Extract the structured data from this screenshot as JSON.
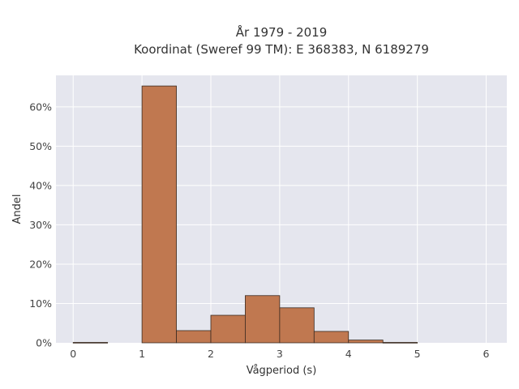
{
  "chart_data": {
    "type": "bar",
    "title_line1": "År 1979 - 2019",
    "title_line2": "Koordinat (Sweref 99 TM): E 368383, N 6189279",
    "xlabel": "Vågperiod (s)",
    "ylabel": "Andel",
    "xlim": [
      -0.25,
      6.3
    ],
    "ylim": [
      0,
      0.68
    ],
    "xticks": [
      0,
      1,
      2,
      3,
      4,
      5,
      6
    ],
    "xtick_labels": [
      "0",
      "1",
      "2",
      "3",
      "4",
      "5",
      "6"
    ],
    "yticks": [
      0,
      0.1,
      0.2,
      0.3,
      0.4,
      0.5,
      0.6
    ],
    "ytick_labels": [
      "0%",
      "10%",
      "20%",
      "30%",
      "40%",
      "50%",
      "60%"
    ],
    "bin_width": 0.5,
    "bins": [
      {
        "start": 0.0,
        "value": 0.001
      },
      {
        "start": 0.5,
        "value": 0.0
      },
      {
        "start": 1.0,
        "value": 0.653
      },
      {
        "start": 1.5,
        "value": 0.031
      },
      {
        "start": 2.0,
        "value": 0.07
      },
      {
        "start": 2.5,
        "value": 0.12
      },
      {
        "start": 3.0,
        "value": 0.089
      },
      {
        "start": 3.5,
        "value": 0.029
      },
      {
        "start": 4.0,
        "value": 0.007
      },
      {
        "start": 4.5,
        "value": 0.001
      },
      {
        "start": 5.0,
        "value": 0.0
      },
      {
        "start": 5.5,
        "value": 0.0
      }
    ],
    "bar_color": "#c07850",
    "plot_background": "#e5e6ee",
    "grid": true,
    "legend": false
  }
}
